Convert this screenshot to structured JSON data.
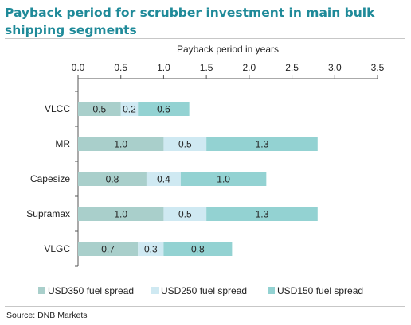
{
  "title": "Payback period for scrubber investment in main bulk shipping segments",
  "source": "Source: DNB Markets",
  "colors": {
    "title": "#1f8a99",
    "series": [
      "#a9cfcb",
      "#cfe9f2",
      "#93d2d2"
    ],
    "label_text": "#222222"
  },
  "chart_data": {
    "type": "bar",
    "orientation": "horizontal",
    "stacked": true,
    "xlabel": "Payback period in years",
    "xlabel_position": "top",
    "xlim": [
      0,
      3.5
    ],
    "xticks": [
      "0.0",
      "0.5",
      "1.0",
      "1.5",
      "2.0",
      "2.5",
      "3.0",
      "3.5"
    ],
    "grid": false,
    "legend": "bottom",
    "categories": [
      "VLCC",
      "MR",
      "Capesize",
      "Supramax",
      "VLGC"
    ],
    "series": [
      {
        "name": "USD350 fuel spread",
        "values": [
          0.5,
          1.0,
          0.8,
          1.0,
          0.7
        ],
        "labels": [
          "0.5",
          "1.0",
          "0.8",
          "1.0",
          "0.7"
        ]
      },
      {
        "name": "USD250 fuel spread",
        "values": [
          0.2,
          0.5,
          0.4,
          0.5,
          0.3
        ],
        "labels": [
          "0.2",
          "0.5",
          "0.4",
          "0.5",
          "0.3"
        ]
      },
      {
        "name": "USD150 fuel spread",
        "values": [
          0.6,
          1.3,
          1.0,
          1.3,
          0.8
        ],
        "labels": [
          "0.6",
          "1.3",
          "1.0",
          "1.3",
          "0.8"
        ]
      }
    ]
  }
}
